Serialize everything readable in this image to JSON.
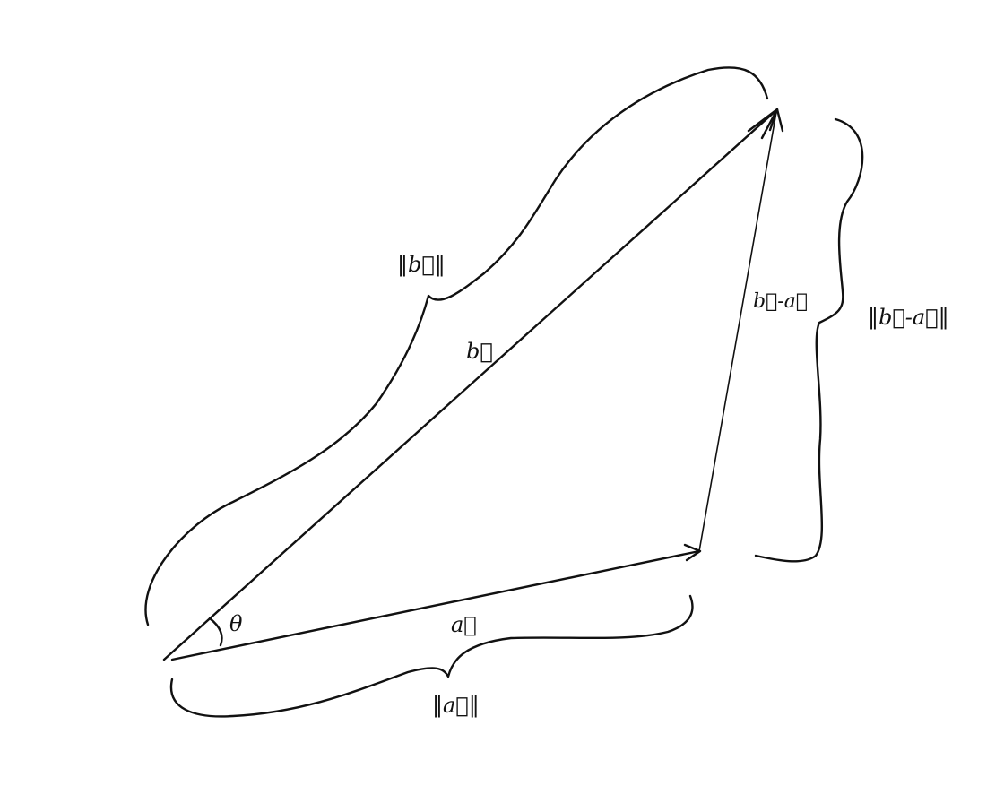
{
  "diagram": {
    "labels": {
      "a": "a⃗",
      "b": "b⃗",
      "b_minus_a": "b⃗-a⃗",
      "theta": "θ",
      "norm_a": "‖a⃗‖",
      "norm_b": "‖b⃗‖",
      "norm_b_minus_a": "‖b⃗-a⃗‖"
    }
  }
}
